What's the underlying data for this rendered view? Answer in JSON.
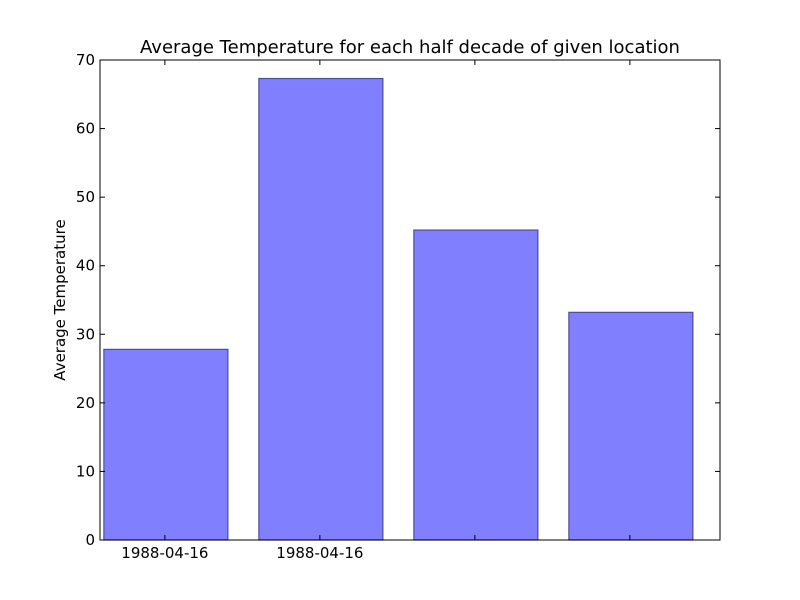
{
  "chart_data": {
    "type": "bar",
    "title": "Average Temperature for each half decade of given location",
    "xlabel": "",
    "ylabel": "Average Temperature",
    "ylim": [
      0,
      70
    ],
    "yticks": [
      0,
      10,
      20,
      30,
      40,
      50,
      60,
      70
    ],
    "categories": [
      "1988-04-16",
      "1988-04-16",
      "",
      ""
    ],
    "values": [
      27.8,
      67.3,
      45.2,
      33.2
    ],
    "bar_color": "#8080ff",
    "edge_color": "#4d4d99",
    "grid": false,
    "legend": "none"
  }
}
